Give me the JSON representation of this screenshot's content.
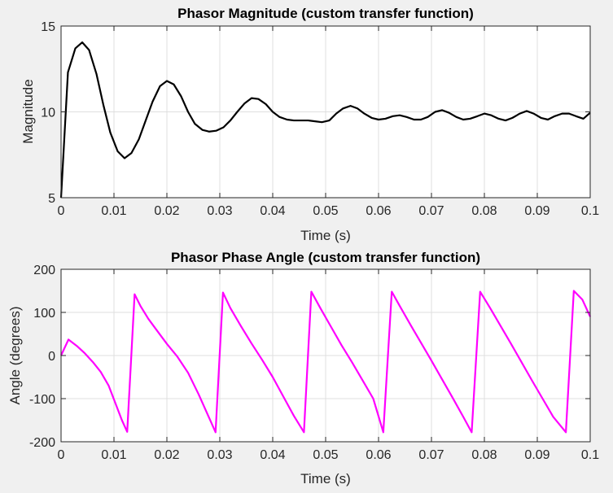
{
  "chart_data": [
    {
      "type": "line",
      "title": "Phasor Magnitude (custom transfer function)",
      "xlabel": "Time (s)",
      "ylabel": "Magnitude",
      "xlim": [
        0,
        0.1
      ],
      "ylim": [
        5,
        15
      ],
      "xticks": [
        "0",
        "0.01",
        "0.02",
        "0.03",
        "0.04",
        "0.05",
        "0.06",
        "0.07",
        "0.08",
        "0.09",
        "0.1"
      ],
      "yticks": [
        "5",
        "10",
        "15"
      ],
      "grid": true,
      "series": [
        {
          "color": "#000000",
          "x": [
            0,
            0.0013,
            0.0027,
            0.004,
            0.0053,
            0.0067,
            0.008,
            0.0093,
            0.0107,
            0.012,
            0.0133,
            0.0147,
            0.016,
            0.0173,
            0.0187,
            0.02,
            0.0213,
            0.0227,
            0.024,
            0.0253,
            0.0267,
            0.028,
            0.0293,
            0.0307,
            0.032,
            0.0333,
            0.0347,
            0.036,
            0.0373,
            0.0387,
            0.04,
            0.0413,
            0.0427,
            0.044,
            0.0453,
            0.0467,
            0.048,
            0.0493,
            0.0507,
            0.052,
            0.0533,
            0.0547,
            0.056,
            0.0573,
            0.0587,
            0.06,
            0.0613,
            0.0627,
            0.064,
            0.0653,
            0.0667,
            0.068,
            0.0693,
            0.0707,
            0.072,
            0.0733,
            0.0747,
            0.076,
            0.0773,
            0.0787,
            0.08,
            0.0813,
            0.0827,
            0.084,
            0.0853,
            0.0867,
            0.088,
            0.0893,
            0.0907,
            0.092,
            0.0933,
            0.0947,
            0.096,
            0.0973,
            0.0987,
            0.1
          ],
          "y": [
            5.0,
            12.3,
            13.7,
            14.05,
            13.6,
            12.2,
            10.4,
            8.8,
            7.7,
            7.3,
            7.6,
            8.4,
            9.5,
            10.6,
            11.5,
            11.8,
            11.6,
            10.9,
            10.0,
            9.3,
            8.95,
            8.85,
            8.9,
            9.1,
            9.5,
            10.0,
            10.5,
            10.8,
            10.75,
            10.45,
            10.0,
            9.7,
            9.55,
            9.5,
            9.5,
            9.5,
            9.45,
            9.4,
            9.5,
            9.9,
            10.2,
            10.35,
            10.2,
            9.9,
            9.65,
            9.55,
            9.6,
            9.75,
            9.8,
            9.7,
            9.55,
            9.55,
            9.7,
            10.0,
            10.1,
            9.95,
            9.7,
            9.55,
            9.6,
            9.75,
            9.9,
            9.8,
            9.6,
            9.5,
            9.65,
            9.9,
            10.05,
            9.9,
            9.65,
            9.55,
            9.75,
            9.9,
            9.9,
            9.75,
            9.6,
            9.95
          ]
        }
      ]
    },
    {
      "type": "line",
      "title": "Phasor Phase Angle (custom transfer function)",
      "xlabel": "Time (s)",
      "ylabel": "Angle (degrees)",
      "xlim": [
        0,
        0.1
      ],
      "ylim": [
        -200,
        200
      ],
      "xticks": [
        "0",
        "0.01",
        "0.02",
        "0.03",
        "0.04",
        "0.05",
        "0.06",
        "0.07",
        "0.08",
        "0.09",
        "0.1"
      ],
      "yticks": [
        "-200",
        "-100",
        "0",
        "100",
        "200"
      ],
      "grid": true,
      "series": [
        {
          "color": "#ff00ff",
          "x": [
            0,
            0.0014,
            0.003,
            0.0045,
            0.006,
            0.0075,
            0.009,
            0.0105,
            0.0115,
            0.0125,
            0.0139,
            0.015,
            0.0165,
            0.018,
            0.02,
            0.022,
            0.024,
            0.026,
            0.028,
            0.0292,
            0.0306,
            0.032,
            0.034,
            0.036,
            0.038,
            0.04,
            0.042,
            0.044,
            0.0459,
            0.0473,
            0.049,
            0.051,
            0.053,
            0.055,
            0.057,
            0.059,
            0.0609,
            0.0625,
            0.064,
            0.066,
            0.068,
            0.07,
            0.072,
            0.074,
            0.076,
            0.0776,
            0.0792,
            0.081,
            0.083,
            0.085,
            0.087,
            0.089,
            0.091,
            0.093,
            0.0954,
            0.0969,
            0.0985,
            0.1
          ],
          "y": [
            0,
            37,
            22,
            5,
            -15,
            -38,
            -70,
            -118,
            -150,
            -177,
            142,
            115,
            85,
            60,
            27,
            -3,
            -40,
            -90,
            -145,
            -178,
            146,
            110,
            68,
            28,
            -10,
            -50,
            -95,
            -140,
            -178,
            148,
            110,
            67,
            24,
            -16,
            -58,
            -100,
            -178,
            148,
            115,
            72,
            30,
            -12,
            -55,
            -98,
            -142,
            -178,
            148,
            112,
            70,
            28,
            -15,
            -58,
            -100,
            -142,
            -178,
            150,
            130,
            90
          ]
        }
      ]
    }
  ]
}
